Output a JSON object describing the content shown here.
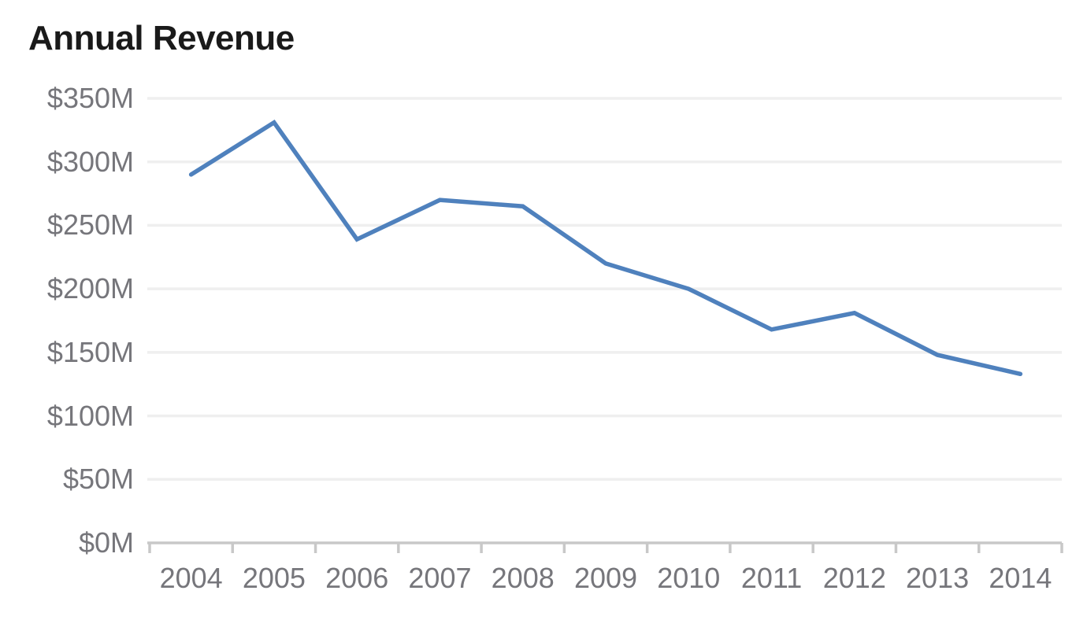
{
  "page": {
    "background_color": "#ffffff"
  },
  "chart_data": {
    "type": "line",
    "title": "Annual Revenue",
    "categories": [
      "2004",
      "2005",
      "2006",
      "2007",
      "2008",
      "2009",
      "2010",
      "2011",
      "2012",
      "2013",
      "2014"
    ],
    "series": [
      {
        "name": "Annual Revenue",
        "values": [
          290,
          331,
          239,
          270,
          265,
          220,
          200,
          168,
          181,
          148,
          133
        ]
      }
    ],
    "xlabel": "",
    "ylabel": "",
    "ylim": [
      0,
      350
    ],
    "y_tick_step": 50,
    "y_tick_values": [
      0,
      50,
      100,
      150,
      200,
      250,
      300,
      350
    ],
    "y_tick_labels": [
      "$0M",
      "$50M",
      "$100M",
      "$150M",
      "$200M",
      "$250M",
      "$300M",
      "$350M"
    ],
    "grid": true,
    "legend": false,
    "colors": {
      "line": "#4f81bd",
      "gridline": "#efefef",
      "axis": "#c8c8c8",
      "tick_label": "#76767b",
      "title": "#1a1a1a"
    }
  }
}
